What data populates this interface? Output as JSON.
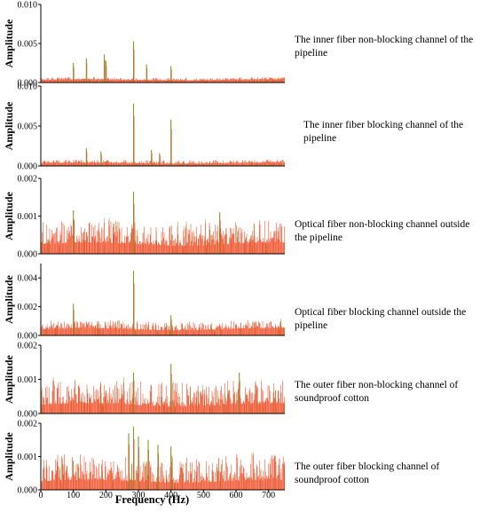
{
  "figure": {
    "xlabel": "Frequency (Hz)",
    "ylabel": "Amplitude"
  },
  "colors": {
    "signal_red": "#f4512e",
    "signal_green": "#7a9a2a",
    "axis": "#000000"
  },
  "chart_data": [
    {
      "type": "line",
      "description": "The inner fiber non-blocking channel of the pipeline",
      "ylabel": "Amplitude",
      "xlim": [
        0,
        750
      ],
      "ylim": [
        0,
        0.01
      ],
      "y_ticks": [
        "0.000",
        "0.005",
        "0.010"
      ],
      "base_level": 0.0004,
      "noise_level": 0.0003,
      "peaks": [
        {
          "x": 100,
          "y": 0.0025
        },
        {
          "x": 140,
          "y": 0.0031
        },
        {
          "x": 195,
          "y": 0.0036
        },
        {
          "x": 200,
          "y": 0.0028
        },
        {
          "x": 285,
          "y": 0.0053
        },
        {
          "x": 325,
          "y": 0.0023
        },
        {
          "x": 400,
          "y": 0.0021
        }
      ]
    },
    {
      "type": "line",
      "description": "The inner fiber blocking channel of the pipeline",
      "ylabel": "Amplitude",
      "xlim": [
        0,
        750
      ],
      "ylim": [
        0,
        0.01
      ],
      "y_ticks": [
        "0.000",
        "0.005",
        "0.010"
      ],
      "base_level": 0.0004,
      "noise_level": 0.0004,
      "peaks": [
        {
          "x": 140,
          "y": 0.0022
        },
        {
          "x": 185,
          "y": 0.0018
        },
        {
          "x": 285,
          "y": 0.0078
        },
        {
          "x": 340,
          "y": 0.002
        },
        {
          "x": 365,
          "y": 0.0016
        },
        {
          "x": 400,
          "y": 0.0058
        }
      ]
    },
    {
      "type": "line",
      "description": "Optical fiber non-blocking channel outside the pipeline",
      "ylabel": "Amplitude",
      "xlim": [
        0,
        750
      ],
      "ylim": [
        0,
        0.002
      ],
      "y_ticks": [
        "0.000",
        "0.001",
        "0.002"
      ],
      "base_level": 0.0003,
      "noise_level": 0.0006,
      "peaks": [
        {
          "x": 100,
          "y": 0.00115
        },
        {
          "x": 285,
          "y": 0.00165
        },
        {
          "x": 550,
          "y": 0.0011
        }
      ]
    },
    {
      "type": "line",
      "description": "Optical fiber blocking channel outside the pipeline",
      "ylabel": "Amplitude",
      "xlim": [
        0,
        750
      ],
      "ylim": [
        0,
        0.005
      ],
      "y_ticks": [
        "0.000",
        "0.002",
        "0.004"
      ],
      "base_level": 0.0005,
      "noise_level": 0.0006,
      "peaks": [
        {
          "x": 100,
          "y": 0.0022
        },
        {
          "x": 285,
          "y": 0.0045
        },
        {
          "x": 400,
          "y": 0.0014
        }
      ]
    },
    {
      "type": "line",
      "description": "The outer fiber non-blocking channel of soundproof cotton",
      "ylabel": "Amplitude",
      "xlim": [
        0,
        750
      ],
      "ylim": [
        0,
        0.002
      ],
      "y_ticks": [
        "0.000",
        "0.001",
        "0.002"
      ],
      "base_level": 0.0003,
      "noise_level": 0.0007,
      "peaks": [
        {
          "x": 285,
          "y": 0.0012
        },
        {
          "x": 400,
          "y": 0.00145
        },
        {
          "x": 610,
          "y": 0.0012
        }
      ]
    },
    {
      "type": "line",
      "description": "The outer fiber blocking channel of soundproof cotton",
      "ylabel": "Amplitude",
      "xlim": [
        0,
        750
      ],
      "ylim": [
        0,
        0.002
      ],
      "y_ticks": [
        "0.000",
        "0.001",
        "0.002"
      ],
      "x_ticks": [
        "0",
        "100",
        "200",
        "300",
        "400",
        "500",
        "600",
        "700"
      ],
      "base_level": 0.0003,
      "noise_level": 0.0008,
      "peaks": [
        {
          "x": 270,
          "y": 0.0017
        },
        {
          "x": 285,
          "y": 0.0019
        },
        {
          "x": 300,
          "y": 0.0016
        },
        {
          "x": 330,
          "y": 0.0015
        },
        {
          "x": 360,
          "y": 0.00135
        },
        {
          "x": 400,
          "y": 0.0013
        }
      ]
    }
  ]
}
